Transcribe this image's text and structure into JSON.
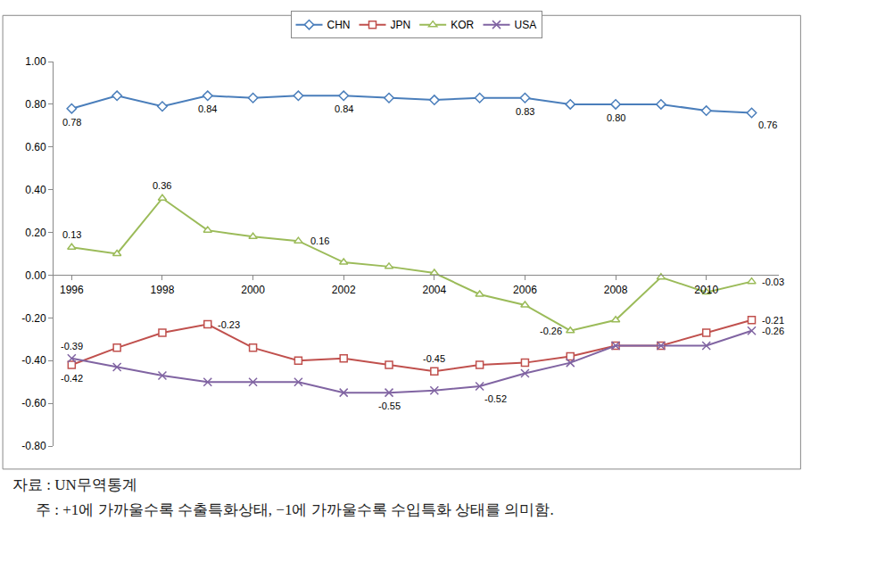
{
  "chart_data": {
    "type": "line",
    "x": [
      1996,
      1997,
      1998,
      1999,
      2000,
      2001,
      2002,
      2003,
      2004,
      2005,
      2006,
      2007,
      2008,
      2009,
      2010,
      2011
    ],
    "series": [
      {
        "name": "CHN",
        "color": "#4a7ebb",
        "marker": "diamond",
        "values": [
          0.78,
          0.84,
          0.79,
          0.84,
          0.83,
          0.84,
          0.84,
          0.83,
          0.82,
          0.83,
          0.83,
          0.8,
          0.8,
          0.8,
          0.77,
          0.76
        ]
      },
      {
        "name": "JPN",
        "color": "#c0504d",
        "marker": "square",
        "values": [
          -0.42,
          -0.34,
          -0.27,
          -0.23,
          -0.34,
          -0.4,
          -0.39,
          -0.42,
          -0.45,
          -0.42,
          -0.41,
          -0.38,
          -0.33,
          -0.33,
          -0.27,
          -0.21
        ]
      },
      {
        "name": "KOR",
        "color": "#9bbb59",
        "marker": "triangle-up",
        "values": [
          0.13,
          0.1,
          0.36,
          0.21,
          0.18,
          0.16,
          0.06,
          0.04,
          0.01,
          -0.09,
          -0.14,
          -0.26,
          -0.21,
          -0.01,
          -0.08,
          -0.03
        ]
      },
      {
        "name": "USA",
        "color": "#8064a2",
        "marker": "x",
        "values": [
          -0.39,
          -0.43,
          -0.47,
          -0.5,
          -0.5,
          -0.5,
          -0.55,
          -0.55,
          -0.54,
          -0.52,
          -0.46,
          -0.41,
          -0.33,
          -0.33,
          -0.33,
          -0.26
        ]
      }
    ],
    "annotations": [
      {
        "text": "0.78",
        "x": 1996,
        "y": 0.78,
        "position": "below"
      },
      {
        "text": "0.84",
        "x": 1999,
        "y": 0.84,
        "position": "below"
      },
      {
        "text": "0.84",
        "x": 2002,
        "y": 0.84,
        "position": "below"
      },
      {
        "text": "0.83",
        "x": 2006,
        "y": 0.83,
        "position": "below"
      },
      {
        "text": "0.80",
        "x": 2008,
        "y": 0.8,
        "position": "below"
      },
      {
        "text": "0.76",
        "x": 2011,
        "y": 0.76,
        "position": "below-right"
      },
      {
        "text": "0.13",
        "x": 1996,
        "y": 0.13,
        "position": "above"
      },
      {
        "text": "0.36",
        "x": 1998,
        "y": 0.36,
        "position": "above"
      },
      {
        "text": "0.16",
        "x": 2001,
        "y": 0.16,
        "position": "right"
      },
      {
        "text": "-0.26",
        "x": 2007,
        "y": -0.26,
        "position": "left"
      },
      {
        "text": "-0.03",
        "x": 2011,
        "y": -0.03,
        "position": "right"
      },
      {
        "text": "-0.42",
        "x": 1996,
        "y": -0.42,
        "position": "below"
      },
      {
        "text": "-0.23",
        "x": 1999,
        "y": -0.23,
        "position": "right"
      },
      {
        "text": "-0.45",
        "x": 2004,
        "y": -0.45,
        "position": "above"
      },
      {
        "text": "-0.21",
        "x": 2011,
        "y": -0.21,
        "position": "right"
      },
      {
        "text": "-0.39",
        "x": 1996,
        "y": -0.39,
        "position": "above"
      },
      {
        "text": "-0.55",
        "x": 2003,
        "y": -0.55,
        "position": "below"
      },
      {
        "text": "-0.52",
        "x": 2005,
        "y": -0.52,
        "position": "below-right"
      },
      {
        "text": "-0.26",
        "x": 2011,
        "y": -0.26,
        "position": "right"
      }
    ],
    "xlim": [
      1995.6,
      2011.6
    ],
    "xticks": [
      1996,
      1998,
      2000,
      2002,
      2004,
      2006,
      2008,
      2010
    ],
    "ylim": [
      -0.8,
      1.0
    ],
    "yticks": [
      {
        "value": -0.8,
        "label": "-0.80"
      },
      {
        "value": -0.6,
        "label": "-0.60"
      },
      {
        "value": -0.4,
        "label": "-0.40"
      },
      {
        "value": -0.2,
        "label": "-0.20"
      },
      {
        "value": 0,
        "label": "0.00"
      },
      {
        "value": 0.2,
        "label": "0.20"
      },
      {
        "value": 0.4,
        "label": "0.40"
      },
      {
        "value": 0.6,
        "label": "0.60"
      },
      {
        "value": 0.8,
        "label": "0.80"
      },
      {
        "value": 1.0,
        "label": "1.00"
      }
    ],
    "grid": false,
    "legend": "top",
    "source": "자료 : UN무역통계",
    "note": "주 : +1에 가까울수록 수출특화상태, −1에 가까울수록 수입특화 상태를 의미함."
  }
}
